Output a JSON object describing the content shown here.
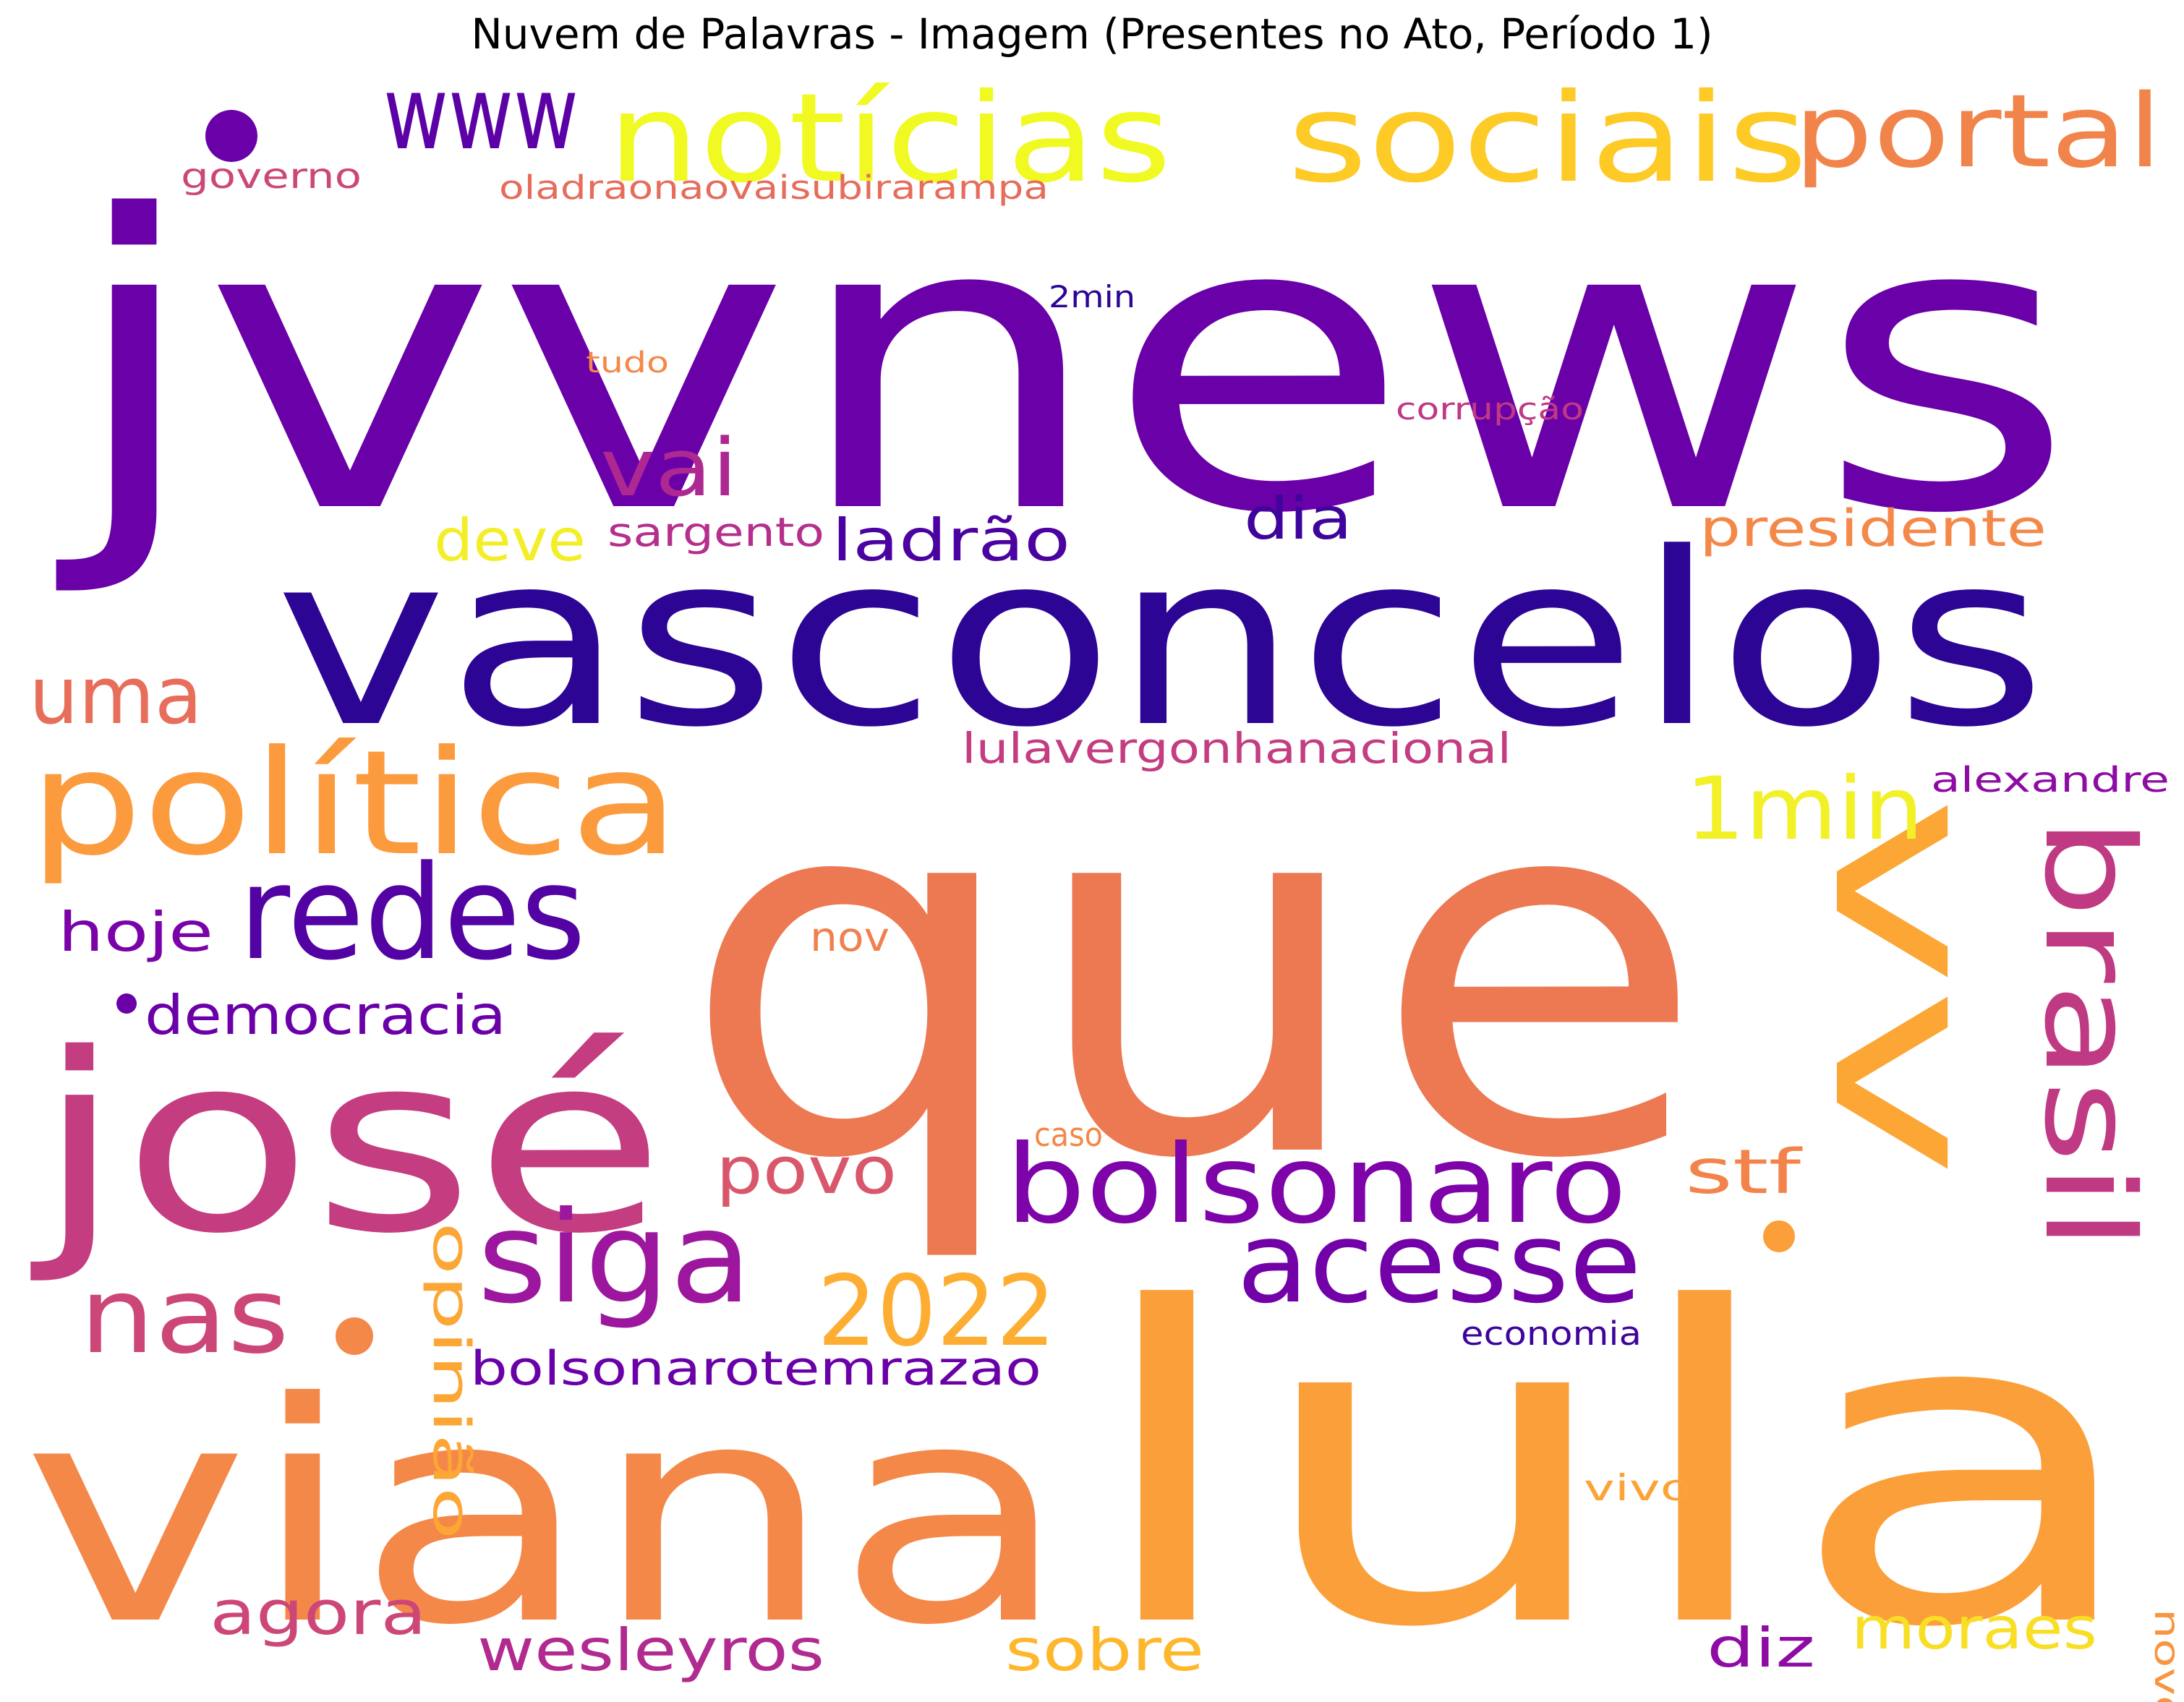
{
  "title": "Nuvem de Palavras - Imagem (Presentes no Ato, Período 1)",
  "words": [
    {
      "text": "jvvnews",
      "color": "#6a00a8"
    },
    {
      "text": "que",
      "color": "#ed7953"
    },
    {
      "text": "vasconcelos",
      "color": "#2c0594"
    },
    {
      "text": "lula",
      "color": "#fb9f3a"
    },
    {
      "text": "viana",
      "color": "#f48849"
    },
    {
      "text": "josé",
      "color": "#c33d80"
    },
    {
      "text": "vv",
      "color": "#fca636"
    },
    {
      "text": "notícias",
      "color": "#f0f921"
    },
    {
      "text": "sociais",
      "color": "#fdca26"
    },
    {
      "text": "portal",
      "color": "#f1844b"
    },
    {
      "text": "www",
      "color": "#5c01a6"
    },
    {
      "text": "política",
      "color": "#fb9b3e"
    },
    {
      "text": "redes",
      "color": "#5302a3"
    },
    {
      "text": "bolsonaro",
      "color": "#7e03a8"
    },
    {
      "text": "brasil",
      "color": "#c03a83"
    },
    {
      "text": "siga",
      "color": "#9c179e"
    },
    {
      "text": "acesse",
      "color": "#7301a8"
    },
    {
      "text": "2022",
      "color": "#fdae32"
    },
    {
      "text": "nas",
      "color": "#cc4778"
    },
    {
      "text": "1min",
      "color": "#f2f027"
    },
    {
      "text": "uma",
      "color": "#e76e5b"
    },
    {
      "text": "vai",
      "color": "#ae2892"
    },
    {
      "text": "ladrão",
      "color": "#4c02a1"
    },
    {
      "text": "dia",
      "color": "#3e049c"
    },
    {
      "text": "deve",
      "color": "#f3ee27"
    },
    {
      "text": "sargento",
      "color": "#b52f8c"
    },
    {
      "text": "presidente",
      "color": "#f48849"
    },
    {
      "text": "povo",
      "color": "#d8576b"
    },
    {
      "text": "stf",
      "color": "#f2844b"
    },
    {
      "text": "hoje",
      "color": "#7a02a8"
    },
    {
      "text": "democracia",
      "color": "#6a00a8"
    },
    {
      "text": "opinião",
      "color": "#fca636"
    },
    {
      "text": "agora",
      "color": "#cc4778"
    },
    {
      "text": "wesleyros",
      "color": "#b12a90"
    },
    {
      "text": "sobre",
      "color": "#feb72d"
    },
    {
      "text": "bolsonarotemrazao",
      "color": "#6a00a8"
    },
    {
      "text": "moraes",
      "color": "#f8df25"
    },
    {
      "text": "diz",
      "color": "#8e0ca4"
    },
    {
      "text": "lulavergonhanacional",
      "color": "#c33d80"
    },
    {
      "text": "alexandre",
      "color": "#8e0ca4"
    },
    {
      "text": "nov",
      "color": "#f0804e"
    },
    {
      "text": "caso",
      "color": "#f48849"
    },
    {
      "text": "economia",
      "color": "#3e049c"
    },
    {
      "text": "vivo",
      "color": "#fca338"
    },
    {
      "text": "novo",
      "color": "#f89540"
    },
    {
      "text": "governo",
      "color": "#cc4778"
    },
    {
      "text": "oladraonaovaisubirarampa",
      "color": "#e66c5c"
    },
    {
      "text": "2min",
      "color": "#2c0594"
    },
    {
      "text": "tudo",
      "color": "#f48849"
    },
    {
      "text": "corrupção",
      "color": "#bf3984"
    }
  ]
}
